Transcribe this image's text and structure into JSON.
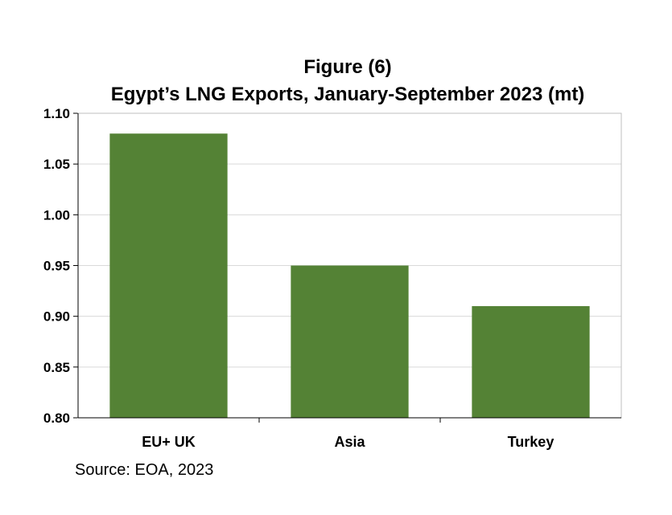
{
  "chart_data": {
    "type": "bar",
    "title": "Figure (6)",
    "subtitle": "Egypt’s LNG Exports, January-September 2023 (mt)",
    "categories": [
      "EU+ UK",
      "Asia",
      "Turkey"
    ],
    "values": [
      1.08,
      0.95,
      0.91
    ],
    "ylim": [
      0.8,
      1.1
    ],
    "yticks": [
      "0.80",
      "0.85",
      "0.90",
      "0.95",
      "1.00",
      "1.05",
      "1.10"
    ],
    "bar_color": "#548235",
    "grid": true,
    "legend": "none"
  },
  "source": "Source: EOA, 2023"
}
